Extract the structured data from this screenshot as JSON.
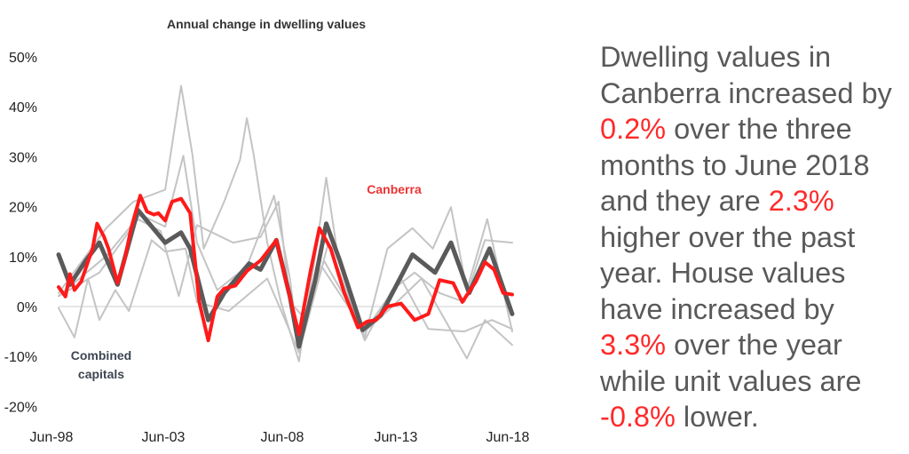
{
  "chart_data": {
    "type": "line",
    "title": "Annual change in dwelling values",
    "xlabel": "",
    "ylabel": "",
    "ylim": [
      -20,
      50
    ],
    "xlim": [
      1998.5,
      2018.5
    ],
    "yticks": [
      "50%",
      "40%",
      "30%",
      "20%",
      "10%",
      "0%",
      "-10%",
      "-20%"
    ],
    "ytick_values": [
      50,
      40,
      30,
      20,
      10,
      0,
      -10,
      -20
    ],
    "xticks": [
      "Jun-98",
      "Jun-03",
      "Jun-08",
      "Jun-13",
      "Jun-18"
    ],
    "xtick_values": [
      1998.5,
      2003.5,
      2008.5,
      2013.5,
      2018.5
    ],
    "grid": false,
    "colors": {
      "canberra": "#ff1a1a",
      "combined": "#5a5a5a",
      "other": "#c4c4c4",
      "zero_line": "#dddddd"
    },
    "annotations": [
      {
        "text": "Canberra",
        "series": "Canberra"
      },
      {
        "text": "Combined capitals",
        "series": "Combined capitals"
      }
    ],
    "series": [
      {
        "name": "",
        "role": "other",
        "points": [
          [
            1998.5,
            2.7
          ],
          [
            2000.6,
            15.7
          ],
          [
            2001.8,
            21
          ],
          [
            2003.2,
            23.4
          ],
          [
            2003.9,
            44.2
          ],
          [
            2004.4,
            30.5
          ],
          [
            2004.9,
            11.6
          ],
          [
            2005.8,
            21
          ],
          [
            2006.5,
            29.4
          ],
          [
            2006.8,
            37.7
          ],
          [
            2007.1,
            30.5
          ],
          [
            2007.7,
            12.8
          ],
          [
            2008.3,
            0.9
          ],
          [
            2009.1,
            -11
          ],
          [
            2009.9,
            12.8
          ],
          [
            2010.3,
            25.8
          ],
          [
            2010.8,
            10.4
          ],
          [
            2012.0,
            -6.2
          ],
          [
            2013.0,
            11.6
          ],
          [
            2014.1,
            15.7
          ],
          [
            2015.0,
            11.6
          ],
          [
            2015.8,
            19.9
          ],
          [
            2016.5,
            3.3
          ],
          [
            2017.4,
            17.5
          ],
          [
            2018.5,
            -5
          ]
        ]
      },
      {
        "name": "",
        "role": "other",
        "points": [
          [
            1998.5,
            2.1
          ],
          [
            2000.6,
            10.1
          ],
          [
            2002.1,
            18.4
          ],
          [
            2003.2,
            16
          ],
          [
            2004.0,
            30.2
          ],
          [
            2004.6,
            12.8
          ],
          [
            2005.5,
            3.3
          ],
          [
            2006.8,
            8
          ],
          [
            2008.0,
            22.2
          ],
          [
            2008.7,
            5.6
          ],
          [
            2009.1,
            -9.2
          ],
          [
            2010.4,
            12.8
          ],
          [
            2012.0,
            -6.8
          ],
          [
            2013.2,
            3.3
          ],
          [
            2014.2,
            6.8
          ],
          [
            2015.3,
            2.7
          ],
          [
            2016.4,
            0.9
          ],
          [
            2017.3,
            13.3
          ],
          [
            2018.5,
            12.8
          ]
        ]
      },
      {
        "name": "",
        "role": "other",
        "points": [
          [
            1998.5,
            -0.3
          ],
          [
            1999.2,
            -6.2
          ],
          [
            1999.8,
            5.6
          ],
          [
            2000.3,
            -2.7
          ],
          [
            2001.0,
            3.3
          ],
          [
            2001.6,
            -0.9
          ],
          [
            2002.6,
            13.3
          ],
          [
            2003.2,
            11
          ],
          [
            2004.1,
            11.6
          ],
          [
            2004.6,
            0.9
          ],
          [
            2006.0,
            -0.9
          ],
          [
            2007.7,
            5.6
          ],
          [
            2009.1,
            -9.2
          ],
          [
            2010.2,
            9.2
          ],
          [
            2012.0,
            -5
          ],
          [
            2013.0,
            -0.9
          ],
          [
            2014.5,
            5.6
          ],
          [
            2016.5,
            -10.4
          ],
          [
            2017.3,
            -2.7
          ],
          [
            2018.5,
            -7.7
          ]
        ]
      },
      {
        "name": "",
        "role": "other",
        "points": [
          [
            1998.5,
            2.1
          ],
          [
            2000.3,
            6.8
          ],
          [
            2002.0,
            17.5
          ],
          [
            2003.0,
            15.1
          ],
          [
            2003.8,
            2.1
          ],
          [
            2004.6,
            16.3
          ],
          [
            2006.2,
            12.8
          ],
          [
            2007.4,
            13.9
          ],
          [
            2008.2,
            21
          ],
          [
            2008.7,
            0.9
          ],
          [
            2009.3,
            -2.1
          ],
          [
            2010.1,
            8
          ],
          [
            2012.0,
            -5
          ],
          [
            2013.6,
            5.6
          ],
          [
            2014.8,
            -4.5
          ],
          [
            2016.4,
            -5
          ],
          [
            2017.6,
            -2.7
          ],
          [
            2018.5,
            -4.5
          ]
        ]
      },
      {
        "name": "Combined capitals",
        "role": "combined",
        "points": [
          [
            1998.5,
            10.4
          ],
          [
            1999.0,
            4.4
          ],
          [
            1999.7,
            9.2
          ],
          [
            2000.3,
            12.8
          ],
          [
            2001.1,
            4.4
          ],
          [
            2002.0,
            19.3
          ],
          [
            2003.2,
            12.8
          ],
          [
            2003.9,
            14.8
          ],
          [
            2004.3,
            11.6
          ],
          [
            2005.1,
            -2.7
          ],
          [
            2005.8,
            2.7
          ],
          [
            2006.9,
            8.6
          ],
          [
            2007.4,
            7.4
          ],
          [
            2008.1,
            13.3
          ],
          [
            2008.7,
            2
          ],
          [
            2009.1,
            -8
          ],
          [
            2009.8,
            5
          ],
          [
            2010.3,
            16.6
          ],
          [
            2010.9,
            9.2
          ],
          [
            2011.9,
            -4.7
          ],
          [
            2012.7,
            -1.8
          ],
          [
            2014.1,
            10.4
          ],
          [
            2015.1,
            6.8
          ],
          [
            2015.8,
            12.8
          ],
          [
            2016.6,
            2.7
          ],
          [
            2017.5,
            11.6
          ],
          [
            2018.5,
            -1.5
          ]
        ]
      },
      {
        "name": "Canberra",
        "role": "canberra",
        "points": [
          [
            1998.5,
            3.9
          ],
          [
            1998.8,
            2
          ],
          [
            1999.0,
            6.5
          ],
          [
            1999.2,
            3.3
          ],
          [
            1999.5,
            5
          ],
          [
            1999.8,
            9
          ],
          [
            2000.0,
            11.6
          ],
          [
            2000.2,
            16.6
          ],
          [
            2000.5,
            14
          ],
          [
            2000.7,
            11.6
          ],
          [
            2001.1,
            4.7
          ],
          [
            2001.4,
            9.2
          ],
          [
            2001.7,
            15.7
          ],
          [
            2002.1,
            22.2
          ],
          [
            2002.4,
            19
          ],
          [
            2002.7,
            18.4
          ],
          [
            2002.9,
            18.7
          ],
          [
            2003.2,
            17.2
          ],
          [
            2003.5,
            21
          ],
          [
            2003.9,
            21.6
          ],
          [
            2004.3,
            18.7
          ],
          [
            2004.7,
            0.9
          ],
          [
            2005.1,
            -6.8
          ],
          [
            2005.5,
            2
          ],
          [
            2005.8,
            3.6
          ],
          [
            2006.3,
            4.2
          ],
          [
            2006.8,
            7.1
          ],
          [
            2007.4,
            9.2
          ],
          [
            2008.1,
            13.3
          ],
          [
            2008.5,
            5.6
          ],
          [
            2009.1,
            -5.6
          ],
          [
            2009.6,
            6.9
          ],
          [
            2010.0,
            15.7
          ],
          [
            2010.5,
            11.6
          ],
          [
            2011.1,
            2.7
          ],
          [
            2011.7,
            -4.2
          ],
          [
            2012.1,
            -3
          ],
          [
            2012.5,
            -2.7
          ],
          [
            2013.0,
            0
          ],
          [
            2013.6,
            0.6
          ],
          [
            2014.2,
            -2.7
          ],
          [
            2014.8,
            -1.5
          ],
          [
            2015.3,
            5.3
          ],
          [
            2015.9,
            4.7
          ],
          [
            2016.3,
            0.9
          ],
          [
            2016.9,
            5
          ],
          [
            2017.3,
            8.9
          ],
          [
            2017.7,
            7.4
          ],
          [
            2018.1,
            2.7
          ],
          [
            2018.5,
            2.4
          ]
        ]
      }
    ]
  },
  "commentary": {
    "segments": [
      {
        "text": "Dwelling values in Canberra increased by ",
        "highlight": false
      },
      {
        "text": "0.2%",
        "highlight": true
      },
      {
        "text": " over the three months to June 2018 and they are ",
        "highlight": false
      },
      {
        "text": "2.3%",
        "highlight": true
      },
      {
        "text": " higher over the past year. House values have increased by ",
        "highlight": false
      },
      {
        "text": "3.3%",
        "highlight": true
      },
      {
        "text": " over the year while unit values are ",
        "highlight": false
      },
      {
        "text": "-0.8%",
        "highlight": true
      },
      {
        "text": " lower.",
        "highlight": false
      }
    ]
  }
}
